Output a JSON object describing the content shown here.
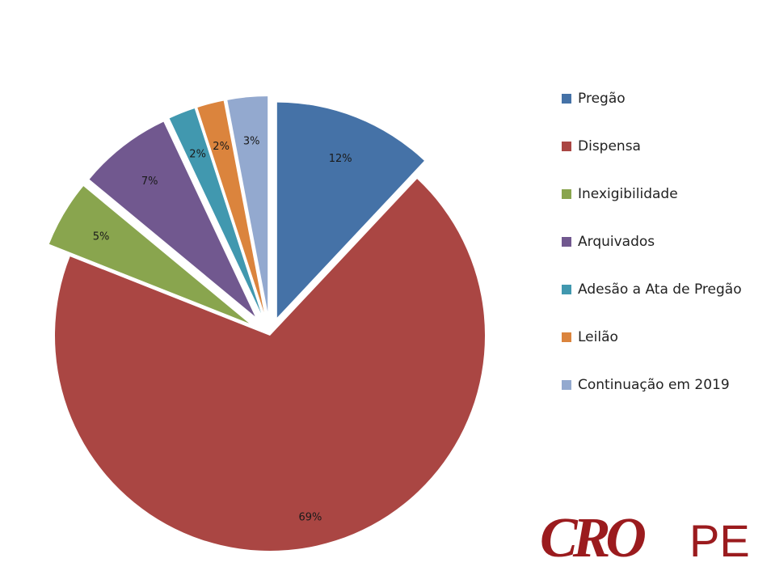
{
  "chart_data": {
    "type": "pie",
    "categories": [
      "Pregão",
      "Dispensa",
      "Inexigibilidade",
      "Arquivados",
      "Adesão a Ata de Pregão",
      "Leilão",
      "Continuação em 2019"
    ],
    "values": [
      12,
      69,
      5,
      7,
      2,
      2,
      3
    ],
    "data_labels": [
      "12%",
      "69%",
      "5%",
      "7%",
      "2%",
      "2%",
      "3%"
    ],
    "colors": [
      "#4572a7",
      "#aa4643",
      "#89a54e",
      "#71588f",
      "#4198af",
      "#db843d",
      "#93a9cf"
    ],
    "exploded": true,
    "legend_position": "right"
  },
  "logo": {
    "text_cro": "CRO",
    "text_pe": "PE"
  }
}
